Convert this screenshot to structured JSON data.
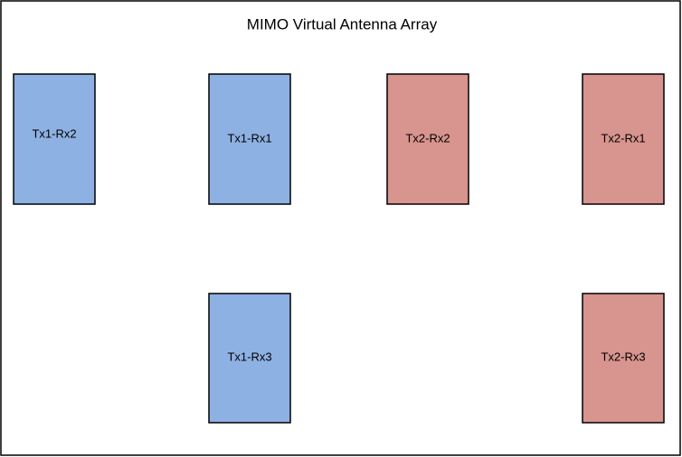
{
  "title": "MIMO Virtual Antenna Array",
  "nodes": [
    {
      "label": "Tx1-Rx2"
    },
    {
      "label": "Tx1-Rx1"
    },
    {
      "label": "Tx2-Rx2"
    },
    {
      "label": "Tx2-Rx1"
    },
    {
      "label": "Tx1-Rx3"
    },
    {
      "label": "Tx2-Rx3"
    }
  ]
}
